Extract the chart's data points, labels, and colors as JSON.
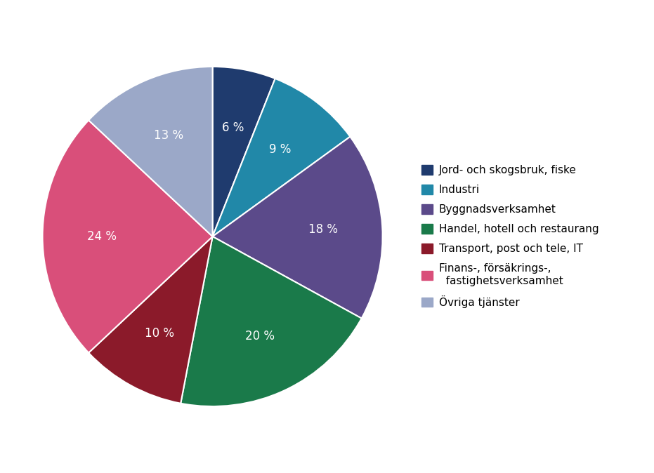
{
  "legend_labels": [
    "Jord- och skogsbruk, fiske",
    "Industri",
    "Byggnadsverksamhet",
    "Handel, hotell och restaurang",
    "Transport, post och tele, IT",
    "Finans-, försäkrings-,\n  fastighetsverksamhet",
    "Övriga tjänster"
  ],
  "values": [
    6,
    9,
    18,
    20,
    10,
    24,
    13
  ],
  "colors": [
    "#1F3B6E",
    "#2188A8",
    "#5B4A8A",
    "#1A7A4A",
    "#8B1A2A",
    "#D94F7A",
    "#9BA8C8"
  ],
  "pct_labels": [
    "6 %",
    "9 %",
    "18 %",
    "20 %",
    "10 %",
    "24 %",
    "13 %"
  ],
  "startangle": 90,
  "figsize": [
    9.31,
    6.74
  ],
  "dpi": 100,
  "text_color": "white",
  "text_fontsize": 12
}
